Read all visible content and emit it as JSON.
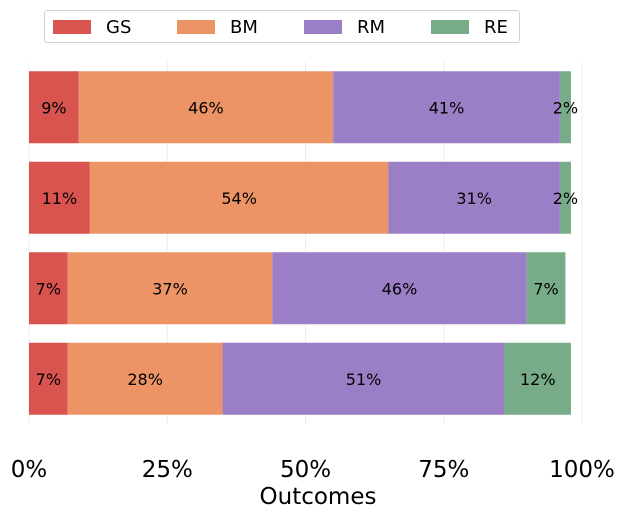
{
  "chart_data": {
    "type": "bar",
    "orientation": "horizontal",
    "stacked": true,
    "xlabel": "Outcomes",
    "ylabel": "",
    "xlim": [
      0,
      100
    ],
    "xticks": [
      "0%",
      "25%",
      "50%",
      "75%",
      "100%"
    ],
    "grid": true,
    "legend_position": "top",
    "rows": 4,
    "series": [
      {
        "name": "GS",
        "color": "#d9534f",
        "values": [
          9,
          11,
          7,
          7
        ],
        "labels": [
          "9%",
          "11%",
          "7%",
          "7%"
        ]
      },
      {
        "name": "BM",
        "color": "#ec9466",
        "values": [
          46,
          54,
          37,
          28
        ],
        "labels": [
          "46%",
          "54%",
          "37%",
          "28%"
        ]
      },
      {
        "name": "RM",
        "color": "#9b7fc6",
        "values": [
          41,
          31,
          46,
          51
        ],
        "labels": [
          "41%",
          "31%",
          "46%",
          "51%"
        ]
      },
      {
        "name": "RE",
        "color": "#78ac88",
        "values": [
          2,
          2,
          7,
          12
        ],
        "labels": [
          "2%",
          "2%",
          "7%",
          "12%"
        ]
      }
    ]
  }
}
